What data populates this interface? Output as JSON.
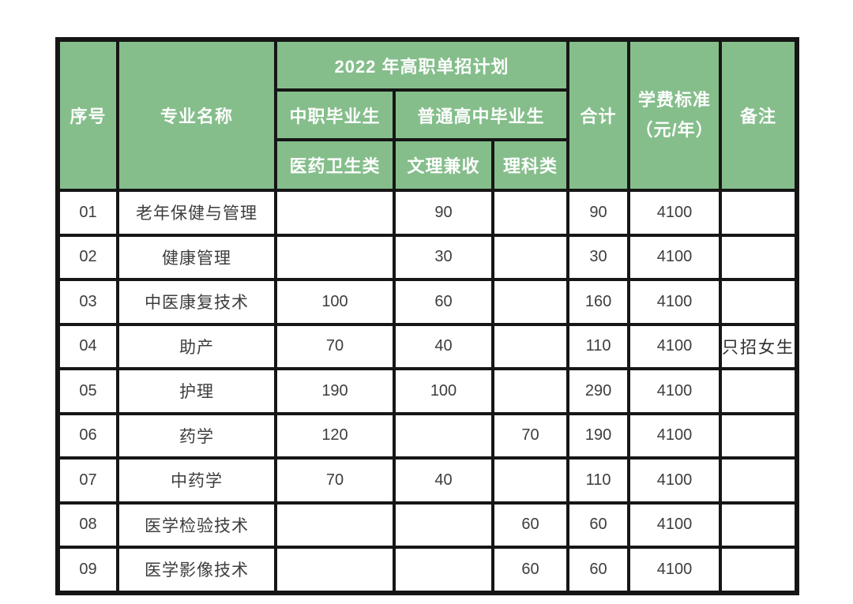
{
  "colors": {
    "header_bg": "#85be8b",
    "header_text": "#fdfdfd",
    "body_text": "#3d3d3d",
    "border": "#161616",
    "page_bg": "#ffffff"
  },
  "table": {
    "header": {
      "col_serial": "序号",
      "col_major": "专业名称",
      "plan_title": "2022 年高职单招计划",
      "group_secondary_vocational": "中职毕业生",
      "group_regular_high_school": "普通高中毕业生",
      "sub_medical_health": "医药卫生类",
      "sub_arts_sciences": "文理兼收",
      "sub_science": "理科类",
      "col_total": "合计",
      "col_tuition_line1": "学费标准",
      "col_tuition_line2": "（元/年）",
      "col_remarks": "备注"
    },
    "rows": [
      {
        "no": "01",
        "major": "老年保健与管理",
        "med": "",
        "arts": "90",
        "sci": "",
        "total": "90",
        "tuition": "4100",
        "remark": ""
      },
      {
        "no": "02",
        "major": "健康管理",
        "med": "",
        "arts": "30",
        "sci": "",
        "total": "30",
        "tuition": "4100",
        "remark": ""
      },
      {
        "no": "03",
        "major": "中医康复技术",
        "med": "100",
        "arts": "60",
        "sci": "",
        "total": "160",
        "tuition": "4100",
        "remark": ""
      },
      {
        "no": "04",
        "major": "助产",
        "med": "70",
        "arts": "40",
        "sci": "",
        "total": "110",
        "tuition": "4100",
        "remark": "只招女生"
      },
      {
        "no": "05",
        "major": "护理",
        "med": "190",
        "arts": "100",
        "sci": "",
        "total": "290",
        "tuition": "4100",
        "remark": ""
      },
      {
        "no": "06",
        "major": "药学",
        "med": "120",
        "arts": "",
        "sci": "70",
        "total": "190",
        "tuition": "4100",
        "remark": ""
      },
      {
        "no": "07",
        "major": "中药学",
        "med": "70",
        "arts": "40",
        "sci": "",
        "total": "110",
        "tuition": "4100",
        "remark": ""
      },
      {
        "no": "08",
        "major": "医学检验技术",
        "med": "",
        "arts": "",
        "sci": "60",
        "total": "60",
        "tuition": "4100",
        "remark": ""
      },
      {
        "no": "09",
        "major": "医学影像技术",
        "med": "",
        "arts": "",
        "sci": "60",
        "total": "60",
        "tuition": "4100",
        "remark": ""
      }
    ]
  }
}
